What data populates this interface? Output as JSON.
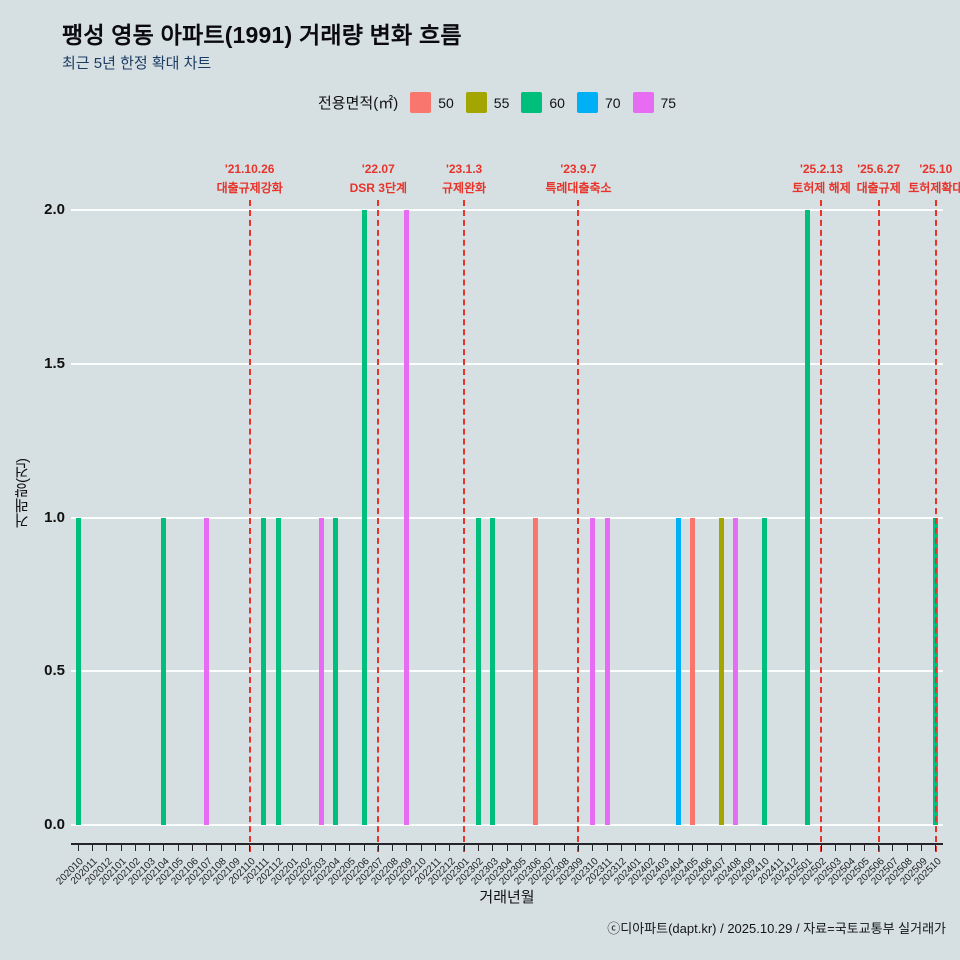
{
  "title": "팽성 영동 아파트(1991) 거래량 변화 흐름",
  "subtitle": "최근 5년 한정 확대 차트",
  "legend": {
    "label": "전용면적(㎡)",
    "items": [
      {
        "label": "50",
        "color": "#F8766D"
      },
      {
        "label": "55",
        "color": "#A3A500"
      },
      {
        "label": "60",
        "color": "#00BF7D"
      },
      {
        "label": "70",
        "color": "#00B0F6"
      },
      {
        "label": "75",
        "color": "#E76BF3"
      }
    ]
  },
  "footer": "ⓒ디아파트(dapt.kr) / 2025.10.29 / 자료=국토교통부 실거래가",
  "chart_data": {
    "type": "bar",
    "title": "팽성 영동 아파트(1991) 거래량 변화 흐름",
    "subtitle": "최근 5년 한정 확대 차트",
    "xlabel": "거래년월",
    "ylabel": "거래량(건)",
    "ylim": [
      0,
      2
    ],
    "background": "#d6e0e3",
    "gridline_color": "#ffffff",
    "event_line_color": "#e8332a",
    "legend_position": "top",
    "yticks": [
      {
        "label": "0.0",
        "value": 0.0
      },
      {
        "label": "0.5",
        "value": 0.5
      },
      {
        "label": "1.0",
        "value": 1.0
      },
      {
        "label": "1.5",
        "value": 1.5
      },
      {
        "label": "2.0",
        "value": 2.0
      }
    ],
    "categories": [
      "202010",
      "202011",
      "202012",
      "202101",
      "202102",
      "202103",
      "202104",
      "202105",
      "202106",
      "202107",
      "202108",
      "202109",
      "202110",
      "202111",
      "202112",
      "202201",
      "202202",
      "202203",
      "202204",
      "202205",
      "202206",
      "202207",
      "202208",
      "202209",
      "202210",
      "202211",
      "202212",
      "202301",
      "202302",
      "202303",
      "202304",
      "202305",
      "202306",
      "202307",
      "202308",
      "202309",
      "202310",
      "202311",
      "202312",
      "202401",
      "202402",
      "202403",
      "202404",
      "202405",
      "202406",
      "202407",
      "202408",
      "202409",
      "202410",
      "202411",
      "202412",
      "202501",
      "202502",
      "202503",
      "202504",
      "202505",
      "202506",
      "202507",
      "202508",
      "202509",
      "202510"
    ],
    "bars": [
      {
        "month": "202010",
        "area": "60",
        "value": 1
      },
      {
        "month": "202104",
        "area": "60",
        "value": 1
      },
      {
        "month": "202107",
        "area": "75",
        "value": 1
      },
      {
        "month": "202111",
        "area": "60",
        "value": 1
      },
      {
        "month": "202112",
        "area": "60",
        "value": 1
      },
      {
        "month": "202203",
        "area": "75",
        "value": 1
      },
      {
        "month": "202204",
        "area": "60",
        "value": 1
      },
      {
        "month": "202206",
        "area": "60",
        "value": 2
      },
      {
        "month": "202209",
        "area": "75",
        "value": 2
      },
      {
        "month": "202302",
        "area": "60",
        "value": 1
      },
      {
        "month": "202303",
        "area": "60",
        "value": 1
      },
      {
        "month": "202306",
        "area": "50",
        "value": 1
      },
      {
        "month": "202310",
        "area": "75",
        "value": 1
      },
      {
        "month": "202311",
        "area": "75",
        "value": 1
      },
      {
        "month": "202404",
        "area": "70",
        "value": 1
      },
      {
        "month": "202405",
        "area": "50",
        "value": 1
      },
      {
        "month": "202407",
        "area": "55",
        "value": 1
      },
      {
        "month": "202408",
        "area": "75",
        "value": 1
      },
      {
        "month": "202410",
        "area": "60",
        "value": 1
      },
      {
        "month": "202501",
        "area": "60",
        "value": 2
      },
      {
        "month": "202510",
        "area": "60",
        "value": 1
      }
    ],
    "events": [
      {
        "month": "202110",
        "date": "'21.10.26",
        "label": "대출규제강화"
      },
      {
        "month": "202207",
        "date": "'22.07",
        "label": "DSR 3단계"
      },
      {
        "month": "202301",
        "date": "'23.1.3",
        "label": "규제완화"
      },
      {
        "month": "202309",
        "date": "'23.9.7",
        "label": "특례대출축소"
      },
      {
        "month": "202502",
        "date": "'25.2.13",
        "label": "토허제 해제"
      },
      {
        "month": "202506",
        "date": "'25.6.27",
        "label": "대출규제"
      },
      {
        "month": "202510",
        "date": "'25.10",
        "label": "토허제확대"
      }
    ]
  }
}
